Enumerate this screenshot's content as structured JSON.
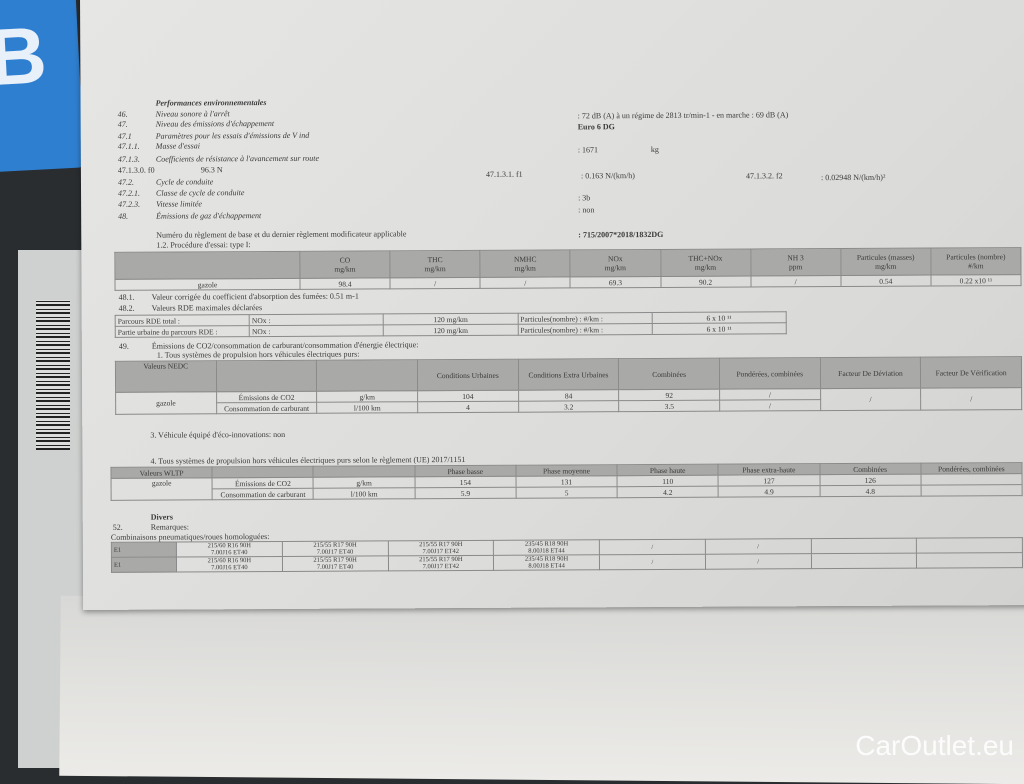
{
  "watermark": "CarOutlet.eu",
  "section_title": "Performances environnementales",
  "items": [
    {
      "num": "46.",
      "label": "Niveau sonore à l'arrêt",
      "value": ": 72 dB (A)  à un régime de 2813 tr/min-1 - en marche :  69 dB (A)"
    },
    {
      "num": "47.",
      "label": "Niveau des émissions d'échappement",
      "value": "Euro 6 DG"
    },
    {
      "num": "47.1",
      "label": "Paramètres pour les essais d'émissions de V ind",
      "value": ""
    },
    {
      "num": "47.1.1.",
      "label": "Masse d'essai",
      "value": ": 1671",
      "unit": "kg"
    },
    {
      "num": "47.1.3.",
      "label": "Coefficients de résistance à l'avancement sur route",
      "value": ""
    },
    {
      "num": "47.2.",
      "label": "Cycle de conduite",
      "value": ""
    },
    {
      "num": "47.2.1.",
      "label": "Classe de cycle de conduite",
      "value": ": 3b"
    },
    {
      "num": "47.2.3.",
      "label": "Vitesse limitée",
      "value": ": non"
    },
    {
      "num": "48.",
      "label": "Émissions de gaz d'échappement",
      "value": ""
    }
  ],
  "f0": {
    "label": "47.1.3.0. f0",
    "value": "96.3 N"
  },
  "f1": {
    "label": "47.1.3.1.  f1",
    "value": ": 0.163 N/(km/h)"
  },
  "f2": {
    "label": "47.1.3.2.  f2",
    "value": ": 0.02948 N/(km/h)²"
  },
  "regulation": {
    "label": "Numéro du règlement de base et du dernier règlement modificateur applicable",
    "value": ": 715/2007*2018/1832DG"
  },
  "procedure": "1.2. Procédure d'essai: type I:",
  "emissions_table": {
    "headers": [
      "",
      "CO\nmg/km",
      "THC\nmg/km",
      "NMHC\nmg/km",
      "NOx\nmg/km",
      "THC+NOx\nmg/km",
      "NH 3\nppm",
      "Particules (masses)\nmg/km",
      "Particules (nombre)\n#/km"
    ],
    "row": [
      "gazole",
      "98.4",
      "/",
      "/",
      "69.3",
      "90.2",
      "/",
      "0.54",
      "0.22 x10 ¹¹"
    ]
  },
  "smoke": {
    "num": "48.1.",
    "text": "Valeur corrigée du coefficient d'absorption des fumées: 0.51 m-1"
  },
  "rde": {
    "num": "48.2.",
    "title": "Valeurs RDE maximales déclarées",
    "rows": [
      [
        "Parcours RDE total :",
        "NOx :",
        "120 mg/km",
        "Particules(nombre) : #/km :",
        "6 x 10 ¹¹"
      ],
      [
        "Partie urbaine du parcours RDE :",
        "NOx :",
        "120 mg/km",
        "Particules(nombre) : #/km :",
        "6 x 10 ¹¹"
      ]
    ]
  },
  "co2": {
    "num": "49.",
    "title": "Émissions de CO2/consommation de carburant/consommation d'énergie électrique:",
    "sub1": "1. Tous systèmes de propulsion hors véhicules électriques purs:"
  },
  "nedc": {
    "headers": [
      "Valeurs NEDC",
      "",
      "",
      "Conditions Urbaines",
      "Conditions Extra Urbaines",
      "Combinées",
      "Pondérées, combinées",
      "Facteur De Déviation",
      "Facteur De Vérification"
    ],
    "fuel": "gazole",
    "rows": [
      [
        "Émissions de CO2",
        "g/km",
        "104",
        "84",
        "92",
        "/"
      ],
      [
        "Consommation de carburant",
        "l/100 km",
        "4",
        "3.2",
        "3.5",
        "/"
      ]
    ],
    "dev": "/",
    "ver": "/"
  },
  "eco": "3. Véhicule équipé d'éco-innovations: non",
  "wltp_title": "4. Tous systèmes de propulsion hors véhicules électriques purs selon le règlement (UE) 2017/1151",
  "wltp": {
    "headers": [
      "Valeurs WLTP",
      "",
      "",
      "Phase basse",
      "Phase moyenne",
      "Phase haute",
      "Phase extra-haute",
      "Combinées",
      "Pondérées, combinées"
    ],
    "fuel": "gazole",
    "rows": [
      [
        "Émissions de CO2",
        "g/km",
        "154",
        "131",
        "110",
        "127",
        "126",
        ""
      ],
      [
        "Consommation de carburant",
        "l/100 km",
        "5.9",
        "5",
        "4.2",
        "4.9",
        "4.8",
        ""
      ]
    ]
  },
  "divers": "Divers",
  "remarks": {
    "num": "52.",
    "label": "Remarques:"
  },
  "tyres_title": "Combinaisons pneumatiques/roues homologuées:",
  "tyres": [
    [
      "E1",
      "215/60 R16 90H\n7.00J16 ET40",
      "215/55 R17 90H\n7.00J17 ET40",
      "215/55 R17 90H\n7.00J17 ET42",
      "235/45 R18 90H\n8.00J18 ET44",
      "/",
      "/",
      "",
      ""
    ],
    [
      "E1",
      "215/60 R16 90H\n7.00J16 ET40",
      "215/55 R17 90H\n7.00J17 ET40",
      "215/55 R17 90H\n7.00J17 ET42",
      "235/45 R18 90H\n8.00J18 ET44",
      "/",
      "/",
      "",
      ""
    ]
  ]
}
